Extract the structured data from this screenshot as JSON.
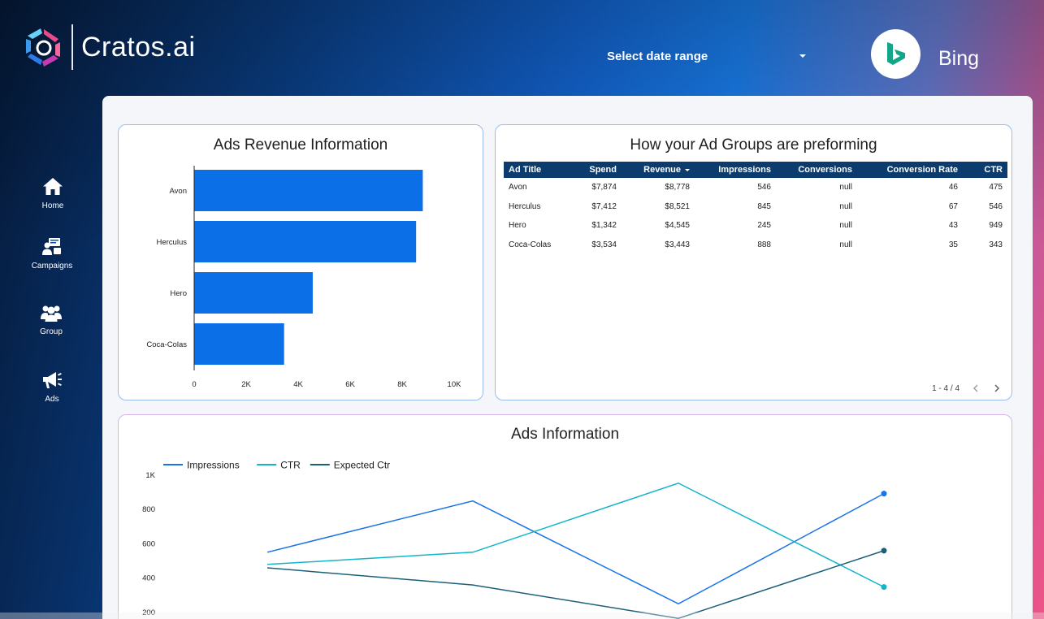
{
  "header": {
    "brand": "Cratos.ai",
    "date_range_label": "Select date range",
    "platform": "Bing"
  },
  "sidebar": {
    "items": [
      {
        "label": "Home",
        "icon": "home-icon"
      },
      {
        "label": "Campaigns",
        "icon": "campaigns-icon"
      },
      {
        "label": "Group",
        "icon": "group-icon"
      },
      {
        "label": "Ads",
        "icon": "megaphone-icon"
      }
    ]
  },
  "revenue_card": {
    "title": "Ads  Revenue Information"
  },
  "table_card": {
    "title": "How your Ad Groups are preforming",
    "columns": [
      "Ad Title",
      "Spend",
      "Revenue",
      "Impressions",
      "Conversions",
      "Conversion Rate",
      "CTR"
    ],
    "rows": [
      [
        "Avon",
        "$7,874",
        "$8,778",
        "546",
        "null",
        "46",
        "475"
      ],
      [
        "Herculus",
        "$7,412",
        "$8,521",
        "845",
        "null",
        "67",
        "546"
      ],
      [
        "Hero",
        "$1,342",
        "$4,545",
        "245",
        "null",
        "43",
        "949"
      ],
      [
        "Coca-Colas",
        "$3,534",
        "$3,443",
        "888",
        "null",
        "35",
        "343"
      ]
    ],
    "pager": "1 - 4 / 4"
  },
  "line_card": {
    "title": "Ads  Information"
  },
  "colors": {
    "bar": "#0b6fe8",
    "impressions": "#1a73e8",
    "ctr": "#12b5cb",
    "expected_ctr": "#1c5f78"
  },
  "chart_data": [
    {
      "type": "bar",
      "orientation": "horizontal",
      "title": "Ads  Revenue Information",
      "categories": [
        "Avon",
        "Herculus",
        "Hero",
        "Coca-Colas"
      ],
      "values": [
        8778,
        8521,
        4545,
        3443
      ],
      "xlim": [
        0,
        10000
      ],
      "ticks": [
        "0",
        "2K",
        "4K",
        "6K",
        "8K",
        "10K"
      ],
      "grid": false
    },
    {
      "type": "line",
      "title": "Ads  Information",
      "x": [
        1,
        2,
        3,
        4
      ],
      "series": [
        {
          "name": "Impressions",
          "values": [
            546,
            845,
            245,
            888
          ]
        },
        {
          "name": "CTR",
          "values": [
            475,
            546,
            949,
            343
          ]
        },
        {
          "name": "Expected Ctr",
          "values": [
            455,
            355,
            160,
            555
          ]
        }
      ],
      "ylim": [
        0,
        1000
      ],
      "yticks": [
        "200",
        "400",
        "600",
        "800",
        "1K"
      ],
      "legend": "top-left",
      "grid": false
    }
  ]
}
